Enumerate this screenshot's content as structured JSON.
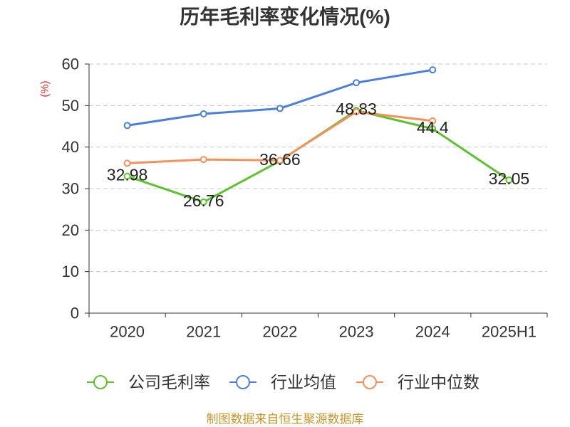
{
  "footer": {
    "source": "制图数据来自恒生聚源数据库"
  },
  "colors": {
    "title": "#333333",
    "axis": "#333333",
    "grid": "#c8c8c8",
    "ylabel": "#e0201f",
    "footer": "#c9962a"
  },
  "chart_data": {
    "type": "line",
    "title": "历年毛利率变化情况(%)",
    "xlabel": "",
    "ylabel": "(%)",
    "categories": [
      "2020",
      "2021",
      "2022",
      "2023",
      "2024",
      "2025H1"
    ],
    "ylim": [
      0,
      60
    ],
    "yticks": [
      0,
      10,
      20,
      30,
      40,
      50,
      60
    ],
    "grid": true,
    "legend_position": "bottom",
    "series": [
      {
        "name": "公司毛利率",
        "color": "#5cc22d",
        "show_labels": true,
        "values": [
          32.98,
          26.76,
          36.66,
          48.83,
          44.4,
          32.05
        ]
      },
      {
        "name": "行业均值",
        "color": "#4c7fd9",
        "show_labels": false,
        "values": [
          45.2,
          48.0,
          49.3,
          55.5,
          58.6,
          null
        ]
      },
      {
        "name": "行业中位数",
        "color": "#f4915a",
        "show_labels": false,
        "values": [
          36.1,
          37.0,
          36.8,
          48.5,
          46.3,
          null
        ]
      }
    ]
  }
}
